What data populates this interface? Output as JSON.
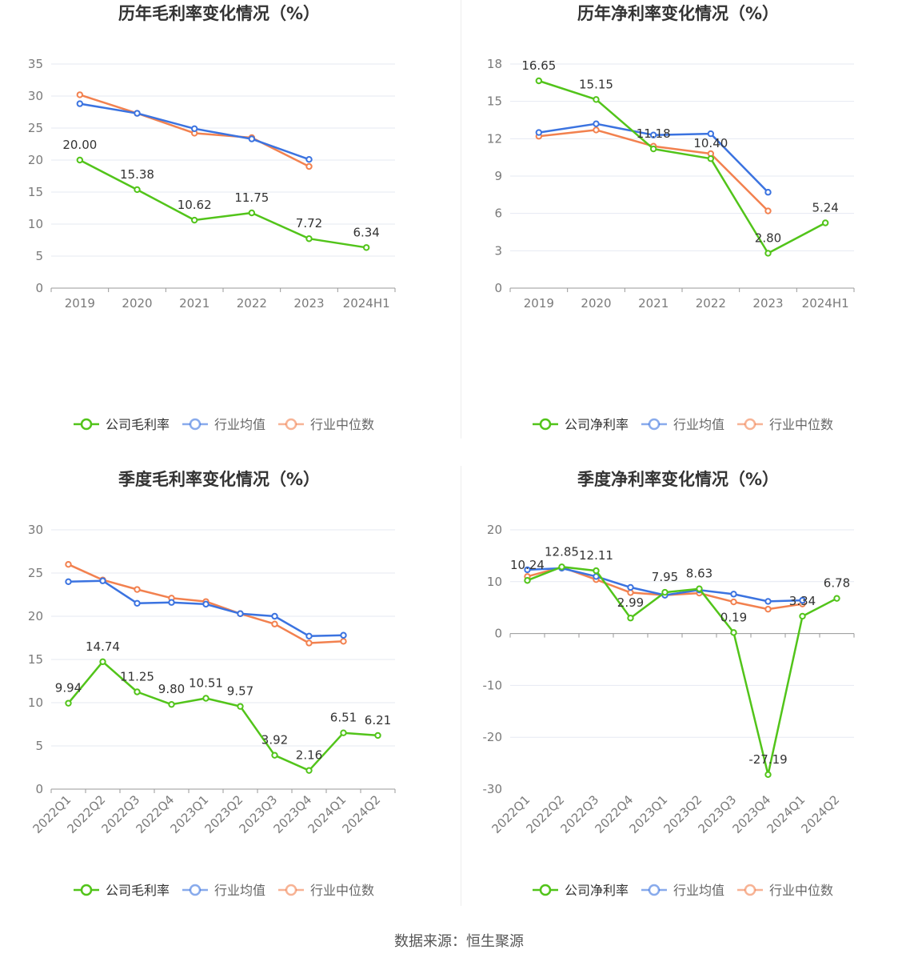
{
  "source": "数据来源：恒生聚源",
  "colors": {
    "company": "#52c41a",
    "avg": "#3b73e0",
    "median": "#f2814f",
    "grid": "#e6e9f2",
    "axis": "#999999"
  },
  "legend_labels": {
    "industry_avg": "行业均值",
    "industry_median": "行业中位数"
  },
  "chart_data": [
    {
      "type": "line",
      "title": "历年毛利率变化情况（%）",
      "categories": [
        "2019",
        "2020",
        "2021",
        "2022",
        "2023",
        "2024H1"
      ],
      "ylim": [
        0,
        35
      ],
      "yticks": [
        0,
        5,
        10,
        15,
        20,
        25,
        30,
        35
      ],
      "rotate_x_labels": false,
      "series": [
        {
          "name": "公司毛利率",
          "key": "company",
          "values": [
            20.0,
            15.38,
            10.62,
            11.75,
            7.72,
            6.34
          ],
          "labels": [
            "20.00",
            "15.38",
            "10.62",
            "11.75",
            "7.72",
            "6.34"
          ]
        },
        {
          "name": "行业均值",
          "key": "avg",
          "values": [
            28.8,
            27.3,
            24.9,
            23.3,
            20.1,
            null
          ]
        },
        {
          "name": "行业中位数",
          "key": "median",
          "values": [
            30.2,
            27.3,
            24.2,
            23.5,
            19.0,
            null
          ]
        }
      ]
    },
    {
      "type": "line",
      "title": "历年净利率变化情况（%）",
      "categories": [
        "2019",
        "2020",
        "2021",
        "2022",
        "2023",
        "2024H1"
      ],
      "ylim": [
        0,
        18
      ],
      "yticks": [
        0,
        3,
        6,
        9,
        12,
        15,
        18
      ],
      "rotate_x_labels": false,
      "series": [
        {
          "name": "公司净利率",
          "key": "company",
          "values": [
            16.65,
            15.15,
            11.18,
            10.4,
            2.8,
            5.24
          ],
          "labels": [
            "16.65",
            "15.15",
            "11.18",
            "10.40",
            "2.80",
            "5.24"
          ]
        },
        {
          "name": "行业均值",
          "key": "avg",
          "values": [
            12.5,
            13.2,
            12.3,
            12.4,
            7.7,
            null
          ]
        },
        {
          "name": "行业中位数",
          "key": "median",
          "values": [
            12.2,
            12.7,
            11.4,
            10.8,
            6.2,
            null
          ]
        }
      ]
    },
    {
      "type": "line",
      "title": "季度毛利率变化情况（%）",
      "categories": [
        "2022Q1",
        "2022Q2",
        "2022Q3",
        "2022Q4",
        "2023Q1",
        "2023Q2",
        "2023Q3",
        "2023Q4",
        "2024Q1",
        "2024Q2"
      ],
      "ylim": [
        0,
        30
      ],
      "yticks": [
        0,
        5,
        10,
        15,
        20,
        25,
        30
      ],
      "rotate_x_labels": true,
      "series": [
        {
          "name": "公司毛利率",
          "key": "company",
          "values": [
            9.94,
            14.74,
            11.25,
            9.8,
            10.51,
            9.57,
            3.92,
            2.16,
            6.51,
            6.21
          ],
          "labels": [
            "9.94",
            "14.74",
            "11.25",
            "9.80",
            "10.51",
            "9.57",
            "3.92",
            "2.16",
            "6.51",
            "6.21"
          ]
        },
        {
          "name": "行业均值",
          "key": "avg",
          "values": [
            24.0,
            24.1,
            21.5,
            21.6,
            21.4,
            20.3,
            20.0,
            17.7,
            17.8,
            null
          ]
        },
        {
          "name": "行业中位数",
          "key": "median",
          "values": [
            26.0,
            24.2,
            23.1,
            22.1,
            21.7,
            20.3,
            19.1,
            16.9,
            17.1,
            null
          ]
        }
      ]
    },
    {
      "type": "line",
      "title": "季度净利率变化情况（%）",
      "categories": [
        "2022Q1",
        "2022Q2",
        "2022Q3",
        "2022Q4",
        "2023Q1",
        "2023Q2",
        "2023Q3",
        "2023Q4",
        "2024Q1",
        "2024Q2"
      ],
      "ylim": [
        -30,
        20
      ],
      "yticks": [
        -30,
        -20,
        -10,
        0,
        10,
        20
      ],
      "rotate_x_labels": true,
      "series": [
        {
          "name": "公司净利率",
          "key": "company",
          "values": [
            10.24,
            12.85,
            12.11,
            2.99,
            7.95,
            8.63,
            0.19,
            -27.19,
            3.34,
            6.78
          ],
          "labels": [
            "10.24",
            "12.85",
            "12.11",
            "2.99",
            "7.95",
            "8.63",
            "0.19",
            "-27.19",
            "3.34",
            "6.78"
          ]
        },
        {
          "name": "行业均值",
          "key": "avg",
          "values": [
            12.3,
            12.6,
            11.0,
            8.9,
            7.4,
            8.4,
            7.6,
            6.2,
            6.4,
            null
          ]
        },
        {
          "name": "行业中位数",
          "key": "median",
          "values": [
            11.0,
            12.8,
            10.4,
            7.9,
            7.4,
            7.8,
            6.1,
            4.7,
            5.7,
            null
          ]
        }
      ]
    }
  ]
}
